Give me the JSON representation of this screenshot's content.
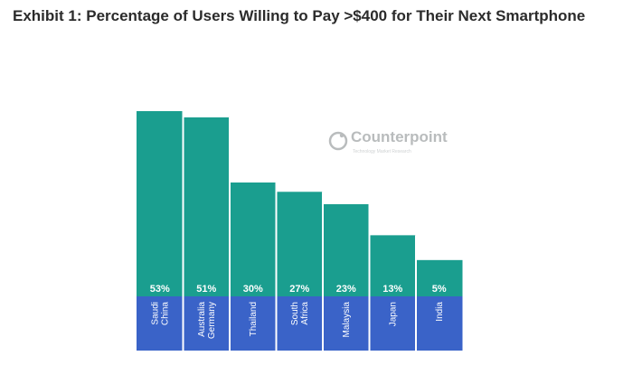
{
  "title": "Exhibit 1: Percentage of Users Willing to Pay >$400 for Their Next Smartphone",
  "watermark": {
    "brand": "Counterpoint",
    "tagline": "Technology Market Research"
  },
  "colors": {
    "bar": "#1a9e8f",
    "label_band": "#3a63c8",
    "text": "#ffffff",
    "divider": "#ffffff"
  },
  "chart_data": {
    "type": "bar",
    "title": "Exhibit 1: Percentage of Users Willing to Pay >$400 for Their Next Smartphone",
    "categories": [
      [
        "Saudi",
        "China"
      ],
      [
        "Australia",
        "Germany"
      ],
      [
        "Thailand"
      ],
      [
        "South",
        "Africa"
      ],
      [
        "Malaysia"
      ],
      [
        "Japan"
      ],
      [
        "India"
      ]
    ],
    "values": [
      53,
      51,
      30,
      27,
      23,
      13,
      5
    ],
    "value_labels": [
      "53%",
      "51%",
      "30%",
      "27%",
      "23%",
      "13%",
      "5%"
    ],
    "ylim": [
      0,
      53
    ],
    "grid": false,
    "legend": "none"
  }
}
